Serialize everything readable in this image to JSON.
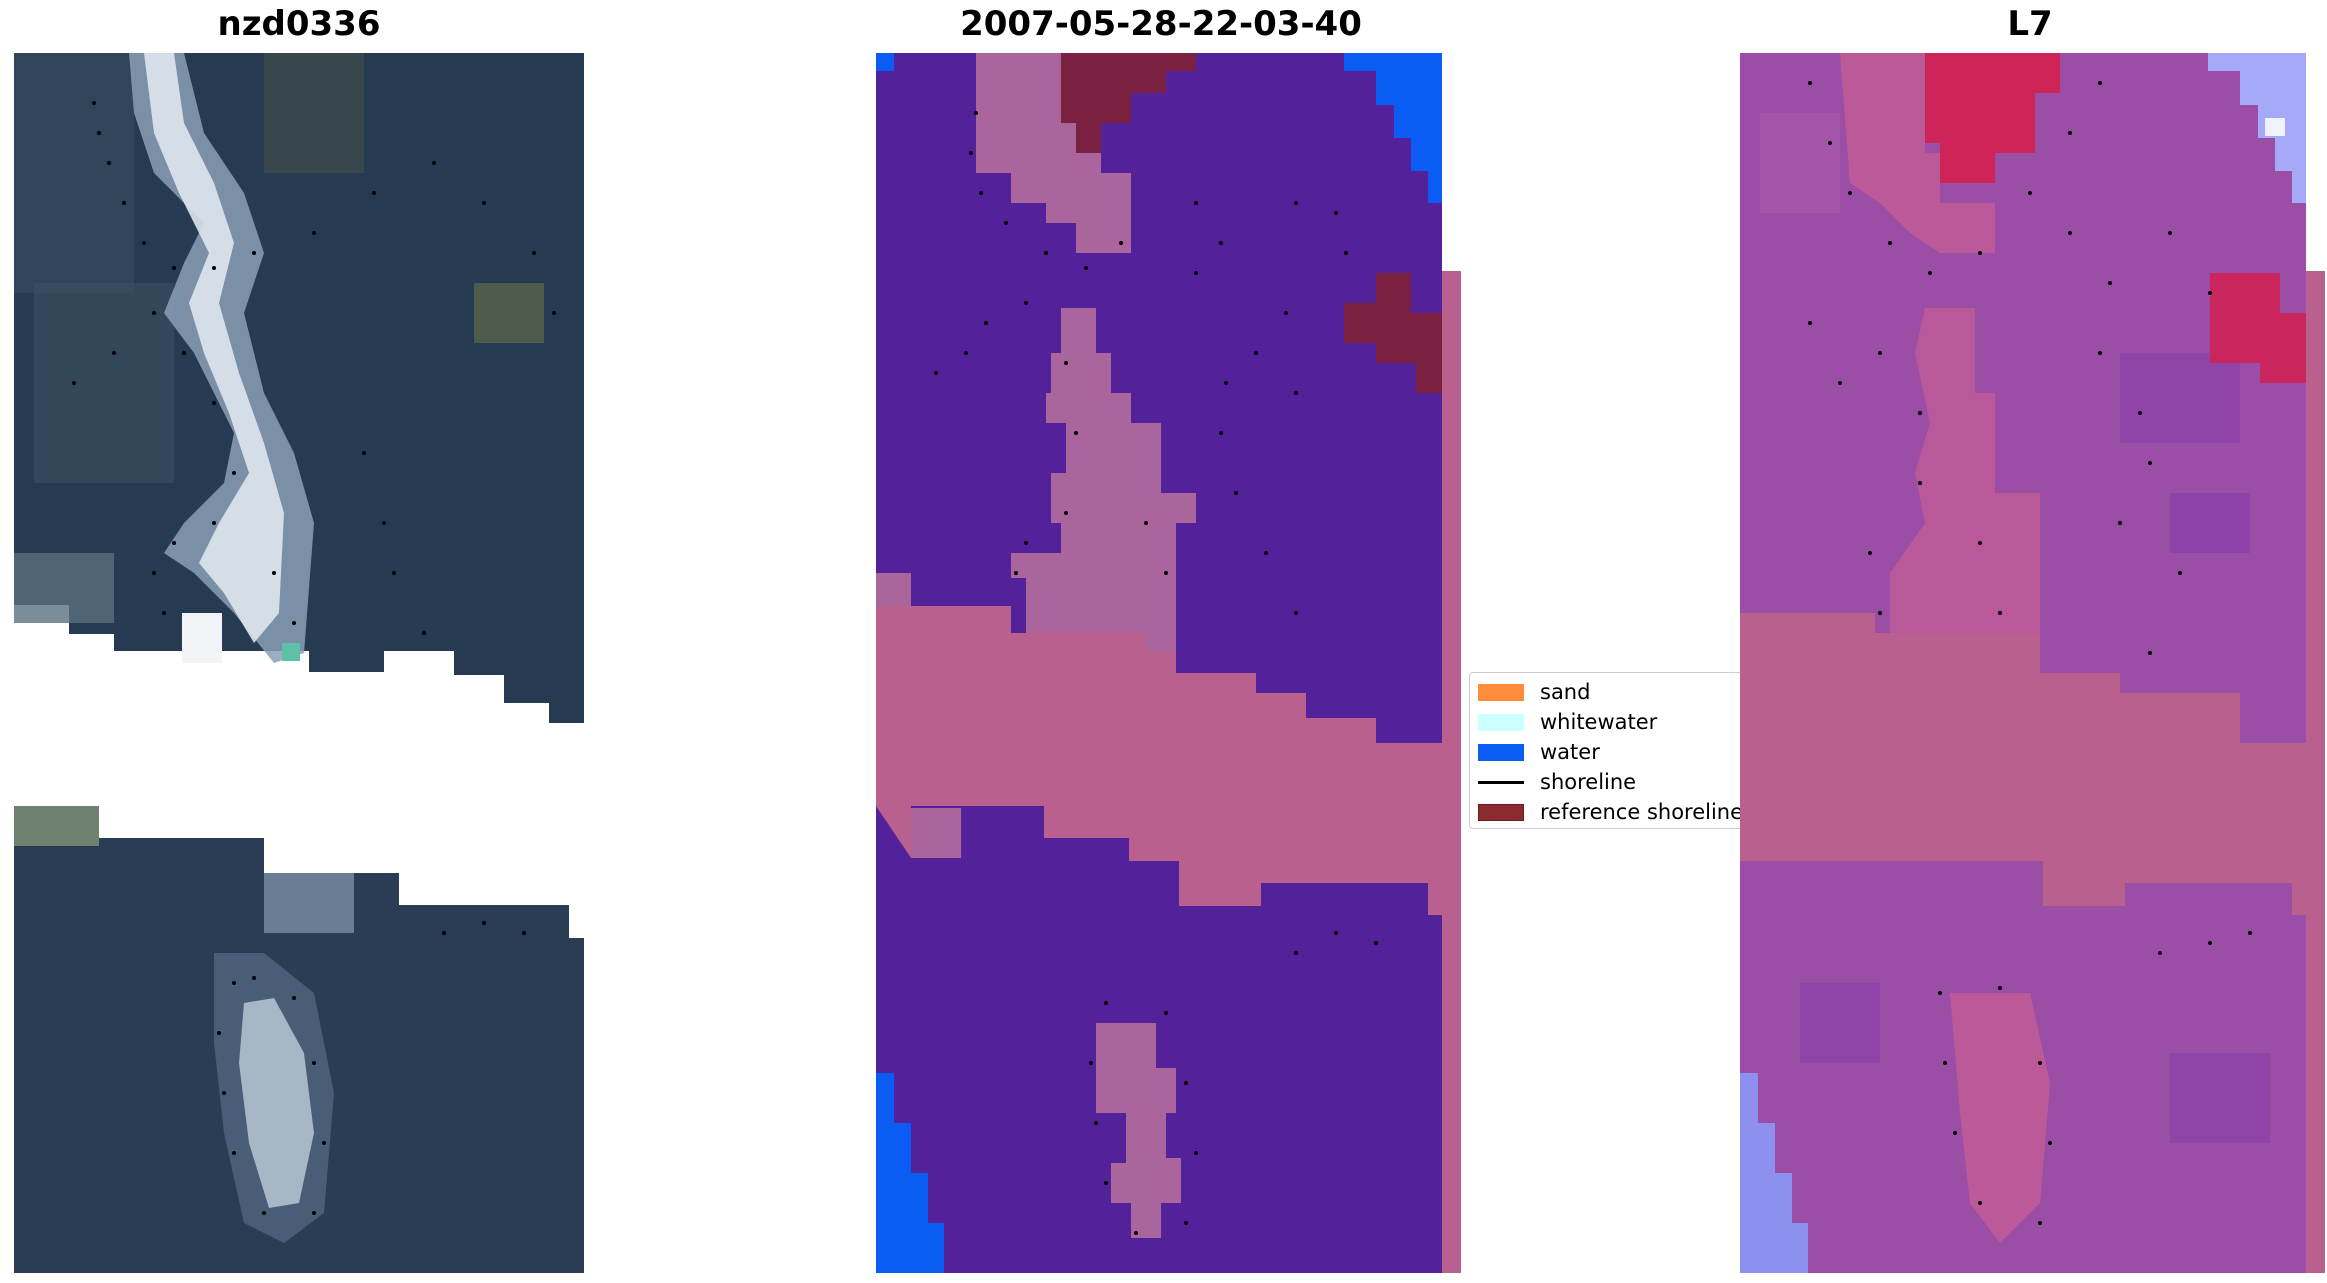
{
  "titles": {
    "left": "nzd0336",
    "middle": "2007-05-28-22-03-40",
    "right": "L7"
  },
  "legend": [
    {
      "label": "sand",
      "kind": "patch",
      "color": "#ff8c3b"
    },
    {
      "label": "whitewater",
      "kind": "patch",
      "color": "#ccffff"
    },
    {
      "label": "water",
      "kind": "patch",
      "color": "#0a5cf5"
    },
    {
      "label": "shoreline",
      "kind": "line",
      "color": "#000000"
    },
    {
      "label": "reference shoreline",
      "kind": "patch",
      "color": "#8b2a2f"
    }
  ],
  "colors": {
    "classification_background": "#53219a",
    "classification_pink": "#b9608f",
    "classification_sand_overlay": "#a9659c",
    "classification_water": "#0a5cf5",
    "classification_reference": "#7a2040",
    "rgb_dark": "#1f3048",
    "rgb_bright": "#e6ecf2",
    "index_base": "#9b4ea6",
    "index_high": "#d42050",
    "index_low": "#a6a8f8"
  }
}
